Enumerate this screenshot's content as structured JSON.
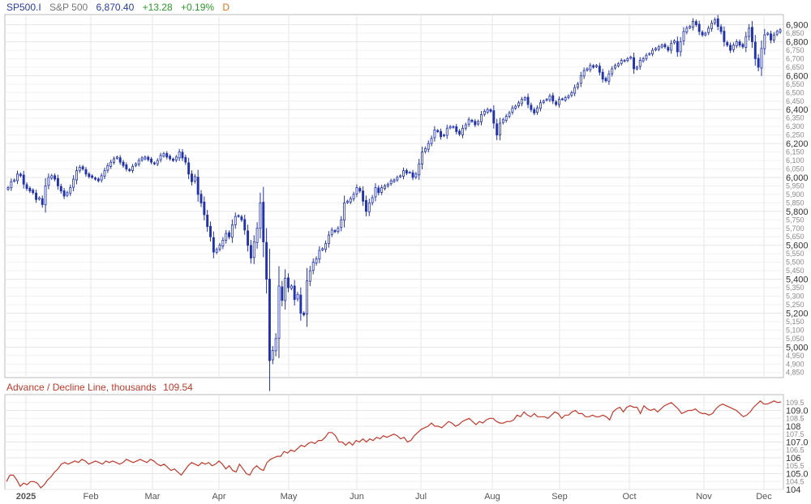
{
  "header": {
    "symbol": "SP500.I",
    "name": "S&P 500",
    "last": "6,870.40",
    "change": "+13.28",
    "change_pct": "+0.19%",
    "period": "D"
  },
  "colors": {
    "candle": "#2233aa",
    "line": "#c0392b",
    "grid": "#e6e6e6",
    "border": "#bbbbbb",
    "axis_text": "#555555",
    "header_symbol": "#2a3aa8",
    "header_change": "#2a9a2a",
    "header_period": "#e07020"
  },
  "chart_data": [
    {
      "type": "candlestick",
      "title": "S&P 500",
      "ylim": [
        4820,
        6960
      ],
      "y_ticks_major": [
        "6,900",
        "6,800",
        "6,600",
        "6,400",
        "6,200",
        "6,000",
        "5,800",
        "5,600",
        "5,400",
        "5,200",
        "5,000"
      ],
      "y_ticks_minor": [
        "6,850",
        "6,750",
        "6,700",
        "6,650",
        "6,550",
        "6,500",
        "6,450",
        "6,350",
        "6,300",
        "6,250",
        "6,150",
        "6,100",
        "6,050",
        "5,950",
        "5,900",
        "5,850",
        "5,750",
        "5,700",
        "5,650",
        "5,550",
        "5,500",
        "5,450",
        "5,350",
        "5,300",
        "5,250",
        "5,150",
        "5,100",
        "5,050",
        "4,950",
        "4,900",
        "4,850"
      ],
      "x_ticks": [
        "2025",
        "Feb",
        "Mar",
        "Apr",
        "May",
        "Jun",
        "Jul",
        "Aug",
        "Sep",
        "Oct",
        "Nov",
        "Dec"
      ],
      "grid": true,
      "closes_by_month": {
        "Jan": [
          5940,
          5975,
          5985,
          6020,
          6010,
          5960,
          5935,
          5920,
          5910,
          5870,
          5880,
          5840,
          5950,
          6000,
          6010,
          5990,
          5950,
          5920,
          5890,
          5910,
          5940,
          5990,
          6040,
          6060,
          6050,
          6020,
          6005,
          6000,
          5990,
          5980,
          6010,
          6040,
          6070,
          6090,
          6110,
          6120,
          6090,
          6070,
          6050,
          6040,
          6065,
          6080,
          6100,
          6115,
          6120,
          6105,
          6090,
          6080,
          6100,
          6130,
          6140,
          6120,
          6110,
          6100,
          6120,
          6150,
          6115,
          6090
        ],
        "Feb": [
          6020,
          5975
        ],
        "Mar": [
          6005,
          5900,
          5850,
          5780,
          5710,
          5650,
          5560,
          5575,
          5600,
          5630,
          5670,
          5650,
          5720,
          5770,
          5770,
          5750,
          5690,
          5600,
          5525,
          5620,
          5700,
          5850
        ],
        "Apr": [
          5620,
          5400,
          4920,
          4980,
          5050,
          5360,
          5275,
          5405,
          5350,
          5360,
          5280,
          5310,
          5200,
          5190,
          5390,
          5450,
          5500,
          5520,
          5570,
          5580,
          5610,
          5660,
          5690
        ],
        "May": [
          5680,
          5700,
          5750,
          5850,
          5860,
          5875,
          5900,
          5940,
          5920,
          5860,
          5800,
          5850,
          5880,
          5940,
          5910,
          5940,
          5950,
          5960,
          5980,
          5985,
          6000,
          6010
        ],
        "Jun": [
          6040,
          6025,
          6030,
          6000,
          6020,
          6080,
          6150,
          6170,
          6200,
          6230,
          6280,
          6270,
          6240,
          6250,
          6290,
          6300,
          6300,
          6270,
          6255,
          6290,
          6310,
          6340,
          6330
        ],
        "Jul": [
          6310,
          6330,
          6370,
          6390,
          6400,
          6390,
          6320,
          6250,
          6320,
          6340,
          6360,
          6380,
          6410,
          6420,
          6440,
          6460,
          6470,
          6430,
          6400,
          6380,
          6410,
          6440,
          6450,
          6460,
          6480
        ],
        "Aug": [
          6450,
          6430,
          6460,
          6460,
          6470,
          6480,
          6500,
          6530,
          6550,
          6600,
          6630,
          6640,
          6660,
          6650,
          6660,
          6620,
          6580,
          6570,
          6610,
          6640,
          6660,
          6670,
          6690,
          6690,
          6700,
          6710
        ],
        "Sep": [
          6640,
          6650,
          6690,
          6700,
          6720,
          6730,
          6750,
          6760,
          6770,
          6780,
          6770,
          6750,
          6790,
          6805,
          6740,
          6800,
          6860,
          6880,
          6890,
          6920,
          6900,
          6860,
          6840,
          6850,
          6880,
          6910,
          6930,
          6890
        ],
        "Oct": [
          6860,
          6800,
          6780,
          6750,
          6780,
          6800,
          6780,
          6770,
          6830,
          6880,
          6800,
          6700,
          6650,
          6760,
          6840,
          6850,
          6810,
          6840
        ],
        "Nov": [
          6860,
          6870
        ]
      }
    },
    {
      "type": "line",
      "title": "Advance / Decline Line, thousands",
      "last_value": "109.54",
      "ylim": [
        104.0,
        110.0
      ],
      "y_ticks": [
        "109.5",
        "109.0",
        "108.5",
        "108",
        "107.5",
        "107.0",
        "106.5",
        "106",
        "105.5",
        "105.0",
        "104.5",
        "104"
      ],
      "series": [
        {
          "values": [
            104.5,
            104.9,
            104.9,
            104.6,
            104.2,
            104.4,
            104.3,
            104.5,
            104.5,
            104.4,
            104.1,
            104.3,
            104.6,
            104.8,
            105.1,
            105.3,
            105.6,
            105.7,
            105.6,
            105.7,
            105.8,
            105.7,
            105.9,
            105.8,
            105.6,
            105.7,
            105.8,
            105.7,
            105.6,
            105.8,
            105.7,
            105.8,
            105.7,
            105.6,
            105.7,
            105.9,
            105.8,
            105.7,
            105.8,
            105.9,
            105.8,
            105.7,
            105.9,
            105.8,
            105.6,
            105.5,
            105.6,
            105.4,
            105.2,
            105.3,
            105.1,
            104.9,
            105.2,
            105.5,
            105.7,
            105.6,
            105.5,
            105.7,
            105.6,
            105.7,
            105.5,
            105.6,
            105.8,
            105.6,
            105.3,
            105.5,
            105.2,
            105.1,
            105.6,
            105.3,
            105.0,
            104.9,
            105.3,
            105.5,
            105.3,
            105.2,
            105.7,
            105.9,
            106.0,
            106.1,
            106.1,
            106.4,
            106.3,
            106.5,
            106.4,
            106.6,
            106.8,
            106.7,
            106.9,
            107.0,
            106.9,
            107.1,
            107.1,
            107.3,
            107.6,
            107.6,
            107.4,
            107.0,
            107.0,
            106.8,
            107.0,
            106.8,
            107.1,
            107.0,
            107.2,
            107.0,
            107.2,
            107.1,
            107.3,
            107.2,
            107.4,
            107.3,
            107.4,
            107.5,
            107.4,
            107.2,
            107.3,
            107.0,
            107.1,
            107.4,
            107.6,
            107.8,
            107.9,
            108.0,
            108.2,
            108.0,
            108.0,
            107.9,
            108.1,
            108.3,
            108.2,
            108.0,
            108.1,
            108.3,
            108.4,
            108.5,
            108.3,
            108.1,
            108.3,
            108.2,
            108.4,
            108.5,
            108.5,
            108.3,
            108.2,
            108.2,
            108.3,
            108.3,
            108.4,
            108.7,
            108.6,
            108.9,
            108.7,
            108.6,
            108.8,
            108.6,
            108.6,
            108.6,
            108.5,
            108.7,
            108.9,
            108.8,
            108.5,
            108.7,
            108.7,
            108.9,
            109.0,
            108.8,
            108.8,
            108.6,
            108.6,
            108.7,
            108.6,
            108.6,
            108.7,
            108.6,
            108.4,
            108.9,
            109.1,
            109.2,
            108.9,
            109.2,
            109.3,
            109.2,
            109.2,
            108.8,
            109.3,
            109.1,
            109.0,
            109.1,
            108.9,
            109.1,
            109.3,
            109.4,
            109.5,
            109.3,
            109.1,
            108.8,
            108.9,
            109.0,
            109.0,
            109.1,
            108.9,
            108.8,
            108.8,
            108.7,
            108.8,
            109.1,
            109.3,
            109.4,
            109.3,
            109.2,
            109.1,
            109.0,
            108.8,
            108.6,
            108.7,
            108.9,
            109.2,
            109.4,
            109.6,
            109.4,
            109.4,
            109.5,
            109.6,
            109.5,
            109.54
          ]
        }
      ]
    }
  ]
}
